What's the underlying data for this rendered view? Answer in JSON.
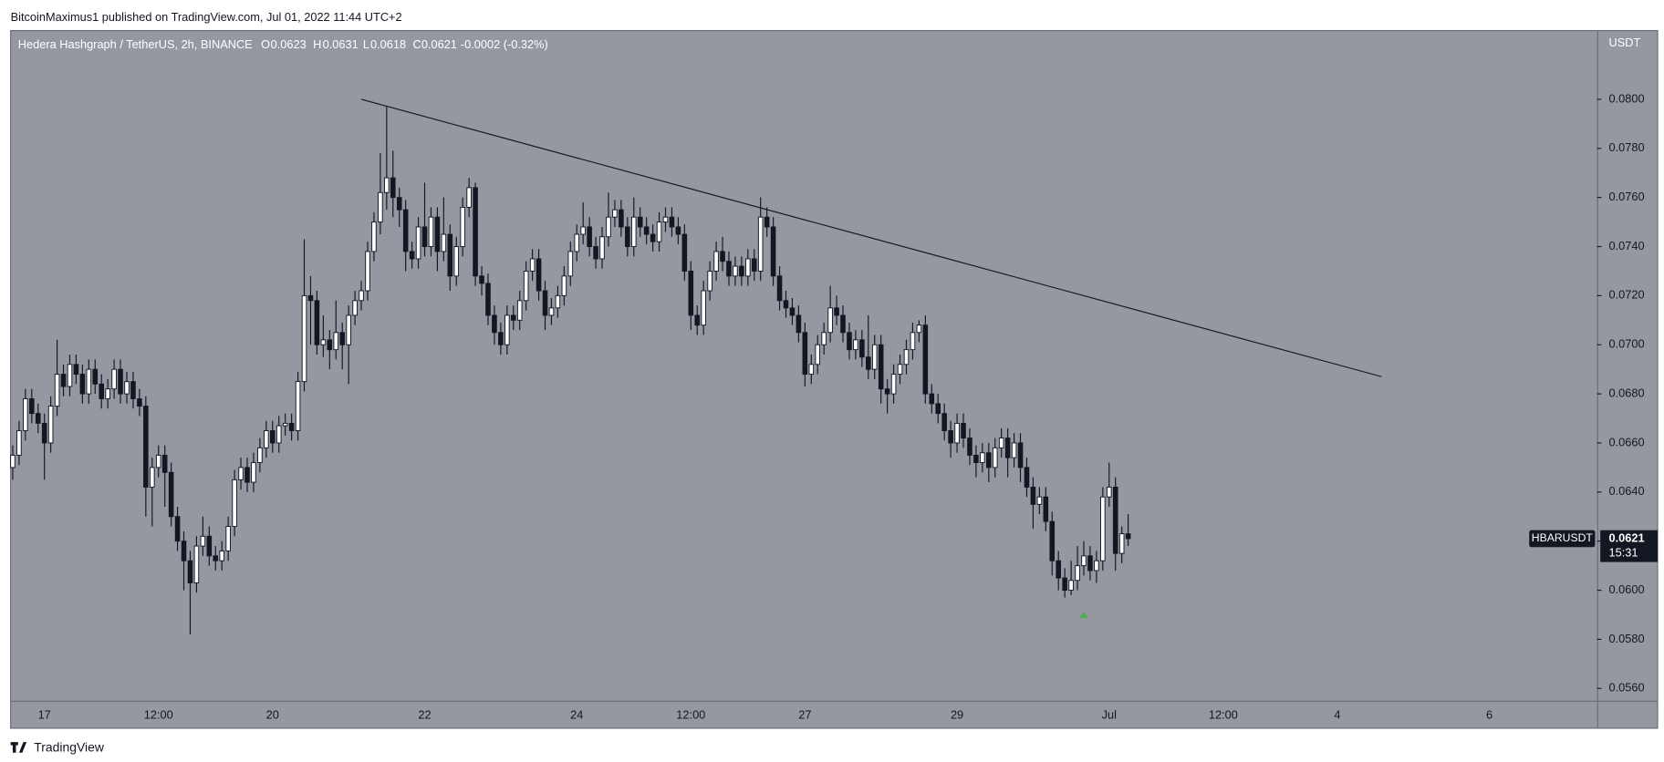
{
  "header": "BitcoinMaximus1 published on TradingView.com, Jul 01, 2022 11:44 UTC+2",
  "footer": "TradingView",
  "chart_data": {
    "type": "candlestick",
    "title": "Hedera Hashgraph / TetherUS, 2h, BINANCE",
    "legend_labels": [
      "O",
      "H",
      "L",
      "C"
    ],
    "change": "-0.0002 (-0.32%)",
    "symbol": "HBARUSDT",
    "countdown": "15:31",
    "currency": "USDT",
    "up_color": "#ffffff",
    "down_color": "#131722",
    "background": "#9598a1",
    "grid": false,
    "ylim": [
      0.0555,
      0.0828
    ],
    "yticks": [
      {
        "value": 0.056,
        "label": "0.0560"
      },
      {
        "value": 0.058,
        "label": "0.0580"
      },
      {
        "value": 0.06,
        "label": "0.0600"
      },
      {
        "value": 0.062,
        "label": "0.0620"
      },
      {
        "value": 0.064,
        "label": "0.0640"
      },
      {
        "value": 0.066,
        "label": "0.0660"
      },
      {
        "value": 0.068,
        "label": "0.0680"
      },
      {
        "value": 0.07,
        "label": "0.0700"
      },
      {
        "value": 0.072,
        "label": "0.0720"
      },
      {
        "value": 0.074,
        "label": "0.0740"
      },
      {
        "value": 0.076,
        "label": "0.0760"
      },
      {
        "value": 0.078,
        "label": "0.0780"
      },
      {
        "value": 0.08,
        "label": "0.0800"
      }
    ],
    "categories": [
      null,
      null,
      null,
      null,
      null,
      "17",
      null,
      null,
      null,
      null,
      null,
      null,
      null,
      null,
      null,
      null,
      null,
      null,
      null,
      null,
      null,
      null,
      null,
      "12:00",
      null,
      null,
      null,
      null,
      null,
      null,
      null,
      null,
      null,
      null,
      null,
      null,
      null,
      null,
      null,
      null,
      null,
      "20",
      null,
      null,
      null,
      null,
      null,
      null,
      null,
      null,
      null,
      null,
      null,
      null,
      null,
      null,
      null,
      null,
      null,
      null,
      null,
      null,
      null,
      null,
      null,
      "22",
      null,
      null,
      null,
      null,
      null,
      null,
      null,
      null,
      null,
      null,
      null,
      null,
      null,
      null,
      null,
      null,
      null,
      null,
      null,
      null,
      null,
      null,
      null,
      "24",
      null,
      null,
      null,
      null,
      null,
      null,
      null,
      null,
      null,
      null,
      null,
      null,
      null,
      null,
      null,
      null,
      null,
      "12:00",
      null,
      null,
      null,
      null,
      null,
      null,
      null,
      null,
      null,
      null,
      null,
      null,
      null,
      null,
      null,
      null,
      null,
      "27",
      null,
      null,
      null,
      null,
      null,
      null,
      null,
      null,
      null,
      null,
      null,
      null,
      null,
      null,
      null,
      null,
      null,
      null,
      null,
      null,
      null,
      null,
      null,
      "29",
      null,
      null,
      null,
      null,
      null,
      null,
      null,
      null,
      null,
      null,
      null,
      null,
      null,
      null,
      null,
      null,
      null,
      null,
      null,
      null,
      null,
      null,
      null,
      "Jul",
      null,
      null,
      null,
      null,
      null,
      null,
      null,
      null,
      null,
      null,
      null,
      null,
      null,
      null,
      null,
      null,
      null,
      "12:00",
      null,
      null,
      null,
      null,
      null,
      null,
      null,
      null,
      null,
      null,
      null,
      null,
      null,
      null,
      null,
      null,
      null,
      "4",
      null,
      null,
      null,
      null,
      null,
      null,
      null,
      null,
      null,
      null,
      null,
      null,
      null,
      null,
      null,
      null,
      null,
      null,
      null,
      null,
      null,
      null,
      null,
      "6",
      null,
      null,
      null,
      null,
      null,
      null,
      null,
      null,
      null,
      null,
      null,
      null,
      null,
      null,
      null,
      null
    ],
    "open": [
      0.065,
      0.0655,
      0.0665,
      0.0678,
      0.0672,
      0.0668,
      0.066,
      0.0675,
      0.0688,
      0.0683,
      0.0692,
      0.0688,
      0.068,
      0.069,
      0.0684,
      0.0678,
      0.0682,
      0.069,
      0.068,
      0.0685,
      0.0678,
      0.0675,
      0.0642,
      0.065,
      0.0655,
      0.0648,
      0.063,
      0.062,
      0.0612,
      0.0603,
      0.0618,
      0.0622,
      0.0614,
      0.0612,
      0.0616,
      0.0626,
      0.0645,
      0.065,
      0.0644,
      0.0652,
      0.0658,
      0.0665,
      0.066,
      0.0667,
      0.0668,
      0.0665,
      0.0685,
      0.072,
      0.0718,
      0.07,
      0.0702,
      0.0698,
      0.0705,
      0.07,
      0.0712,
      0.0718,
      0.0722,
      0.0738,
      0.075,
      0.0762,
      0.0768,
      0.076,
      0.0755,
      0.0738,
      0.0735,
      0.0748,
      0.074,
      0.0752,
      0.0738,
      0.0745,
      0.0728,
      0.074,
      0.0756,
      0.0764,
      0.0728,
      0.0725,
      0.0712,
      0.0705,
      0.07,
      0.0712,
      0.071,
      0.0718,
      0.073,
      0.0735,
      0.0722,
      0.0712,
      0.0715,
      0.072,
      0.0728,
      0.0738,
      0.0745,
      0.0748,
      0.074,
      0.0735,
      0.0744,
      0.0752,
      0.0755,
      0.0748,
      0.074,
      0.0752,
      0.0748,
      0.0745,
      0.0742,
      0.075,
      0.0752,
      0.0748,
      0.0745,
      0.073,
      0.0712,
      0.0708,
      0.0722,
      0.073,
      0.0738,
      0.0734,
      0.0728,
      0.0732,
      0.0728,
      0.0735,
      0.073,
      0.0752,
      0.0748,
      0.0728,
      0.0718,
      0.0715,
      0.0712,
      0.0705,
      0.0688,
      0.0692,
      0.07,
      0.0705,
      0.0715,
      0.0712,
      0.0705,
      0.0698,
      0.0702,
      0.0695,
      0.069,
      0.07,
      0.0682,
      0.068,
      0.0688,
      0.0692,
      0.0698,
      0.0705,
      0.0708,
      0.068,
      0.0676,
      0.0672,
      0.0665,
      0.066,
      0.0668,
      0.0662,
      0.0655,
      0.0652,
      0.0656,
      0.065,
      0.0658,
      0.0662,
      0.0654,
      0.066,
      0.065,
      0.0642,
      0.0635,
      0.0638,
      0.0628,
      0.0612,
      0.0605,
      0.06,
      0.0604,
      0.061,
      0.0614,
      0.0608,
      0.0612,
      0.0638,
      0.0642,
      0.0615,
      0.0623,
      null,
      null,
      null,
      null,
      null,
      null,
      null,
      null,
      null,
      null,
      null,
      null,
      null,
      null,
      null,
      null,
      null,
      null,
      null,
      null,
      null,
      null,
      null,
      null,
      null,
      null,
      null,
      null,
      null,
      null,
      null,
      null,
      null,
      null,
      null,
      null,
      null,
      null,
      null,
      null,
      null,
      null,
      null,
      null,
      null,
      null,
      null,
      null,
      null,
      null,
      null,
      null,
      null,
      null,
      null,
      null,
      null,
      null,
      null,
      null,
      null,
      null,
      null,
      null,
      null,
      null,
      null,
      null,
      null,
      null,
      null,
      null,
      null
    ],
    "high": [
      0.0659,
      0.0669,
      0.0682,
      0.0682,
      0.0676,
      0.0672,
      0.0679,
      0.0702,
      0.0692,
      0.0696,
      0.0696,
      0.0692,
      0.0694,
      0.0694,
      0.0688,
      0.0686,
      0.0694,
      0.0694,
      0.0689,
      0.0689,
      0.0682,
      0.0679,
      0.0654,
      0.0659,
      0.0659,
      0.0652,
      0.0634,
      0.0624,
      0.0616,
      0.0622,
      0.063,
      0.0626,
      0.0618,
      0.062,
      0.063,
      0.0649,
      0.0654,
      0.0654,
      0.0656,
      0.0662,
      0.0669,
      0.0669,
      0.0671,
      0.0672,
      0.0672,
      0.0689,
      0.0743,
      0.0728,
      0.0722,
      0.0712,
      0.0706,
      0.0718,
      0.0709,
      0.0716,
      0.0722,
      0.0726,
      0.0742,
      0.0754,
      0.0778,
      0.0797,
      0.0779,
      0.0764,
      0.0759,
      0.0742,
      0.0752,
      0.0766,
      0.0756,
      0.0756,
      0.076,
      0.0749,
      0.0744,
      0.076,
      0.0768,
      0.0766,
      0.0732,
      0.0729,
      0.0716,
      0.0709,
      0.0716,
      0.0716,
      0.0722,
      0.0734,
      0.0739,
      0.0739,
      0.0726,
      0.0719,
      0.0724,
      0.0732,
      0.0742,
      0.0749,
      0.0758,
      0.0752,
      0.0744,
      0.0748,
      0.0762,
      0.0759,
      0.0759,
      0.0752,
      0.076,
      0.0756,
      0.0752,
      0.0749,
      0.0754,
      0.0756,
      0.0756,
      0.0752,
      0.0749,
      0.0734,
      0.0716,
      0.0726,
      0.0734,
      0.0742,
      0.0744,
      0.0738,
      0.0736,
      0.0736,
      0.0739,
      0.0739,
      0.076,
      0.0756,
      0.0752,
      0.0732,
      0.0722,
      0.0719,
      0.0716,
      0.0709,
      0.0696,
      0.0704,
      0.0709,
      0.0724,
      0.072,
      0.0716,
      0.0709,
      0.0706,
      0.0706,
      0.0712,
      0.0704,
      0.0704,
      0.0686,
      0.0692,
      0.0696,
      0.0702,
      0.0709,
      0.071,
      0.0712,
      0.0684,
      0.068,
      0.0676,
      0.0669,
      0.0672,
      0.0672,
      0.0666,
      0.0659,
      0.066,
      0.066,
      0.0662,
      0.0666,
      0.0666,
      0.0664,
      0.0664,
      0.0654,
      0.0646,
      0.0642,
      0.0642,
      0.0632,
      0.0616,
      0.0609,
      0.0612,
      0.0618,
      0.062,
      0.0618,
      0.0616,
      0.0642,
      0.0652,
      0.0646,
      0.0626,
      0.0631,
      null,
      null,
      null,
      null,
      null,
      null,
      null,
      null,
      null,
      null,
      null,
      null,
      null,
      null,
      null,
      null,
      null,
      null,
      null,
      null,
      null,
      null,
      null,
      null,
      null,
      null,
      null,
      null,
      null,
      null,
      null,
      null,
      null,
      null,
      null,
      null,
      null,
      null,
      null,
      null,
      null,
      null,
      null,
      null,
      null,
      null,
      null,
      null,
      null,
      null,
      null,
      null,
      null,
      null,
      null,
      null,
      null,
      null,
      null,
      null,
      null,
      null,
      null,
      null,
      null,
      null,
      null,
      null,
      null,
      null,
      null,
      null,
      null
    ],
    "low": [
      0.0645,
      0.0651,
      0.0661,
      0.0668,
      0.0664,
      0.0645,
      0.0656,
      0.0671,
      0.0679,
      0.0679,
      0.0684,
      0.0676,
      0.0676,
      0.068,
      0.0674,
      0.0674,
      0.0678,
      0.0676,
      0.0676,
      0.0674,
      0.0671,
      0.063,
      0.0626,
      0.0646,
      0.0634,
      0.0626,
      0.0616,
      0.06,
      0.0582,
      0.0599,
      0.0614,
      0.061,
      0.0608,
      0.0608,
      0.0612,
      0.0622,
      0.0641,
      0.064,
      0.064,
      0.0648,
      0.0654,
      0.0656,
      0.0656,
      0.0663,
      0.0661,
      0.0661,
      0.0681,
      0.07,
      0.0696,
      0.0695,
      0.069,
      0.0694,
      0.069,
      0.0684,
      0.0708,
      0.0714,
      0.0718,
      0.0734,
      0.0745,
      0.0755,
      0.0752,
      0.0748,
      0.073,
      0.0731,
      0.0731,
      0.0736,
      0.0736,
      0.073,
      0.0734,
      0.0722,
      0.0724,
      0.0736,
      0.0752,
      0.0724,
      0.072,
      0.0708,
      0.07,
      0.0696,
      0.0696,
      0.0706,
      0.0706,
      0.0714,
      0.0726,
      0.0718,
      0.0706,
      0.0708,
      0.0711,
      0.0716,
      0.0724,
      0.0734,
      0.0741,
      0.0736,
      0.0731,
      0.0731,
      0.074,
      0.0748,
      0.0744,
      0.0736,
      0.0736,
      0.0744,
      0.0741,
      0.0738,
      0.0738,
      0.0746,
      0.0744,
      0.0741,
      0.0726,
      0.0706,
      0.0704,
      0.0704,
      0.0718,
      0.0726,
      0.073,
      0.0724,
      0.0724,
      0.0724,
      0.0724,
      0.0726,
      0.0726,
      0.0744,
      0.0724,
      0.0714,
      0.0711,
      0.0708,
      0.0701,
      0.0683,
      0.0684,
      0.0688,
      0.0696,
      0.0701,
      0.0708,
      0.0701,
      0.0694,
      0.0694,
      0.0691,
      0.0686,
      0.0686,
      0.0676,
      0.0672,
      0.0676,
      0.0684,
      0.0688,
      0.0694,
      0.0701,
      0.0676,
      0.0672,
      0.0668,
      0.0661,
      0.0654,
      0.0656,
      0.0658,
      0.0651,
      0.0646,
      0.0648,
      0.0644,
      0.0646,
      0.0654,
      0.0646,
      0.065,
      0.0644,
      0.0638,
      0.0625,
      0.0631,
      0.0624,
      0.0606,
      0.06,
      0.0597,
      0.0598,
      0.06,
      0.0606,
      0.0604,
      0.0603,
      0.0608,
      0.0634,
      0.0608,
      0.0611,
      0.0618,
      null,
      null,
      null,
      null,
      null,
      null,
      null,
      null,
      null,
      null,
      null,
      null,
      null,
      null,
      null,
      null,
      null,
      null,
      null,
      null,
      null,
      null,
      null,
      null,
      null,
      null,
      null,
      null,
      null,
      null,
      null,
      null,
      null,
      null,
      null,
      null,
      null,
      null,
      null,
      null,
      null,
      null,
      null,
      null,
      null,
      null,
      null,
      null,
      null,
      null,
      null,
      null,
      null,
      null,
      null,
      null,
      null,
      null,
      null,
      null,
      null,
      null,
      null,
      null,
      null,
      null,
      null,
      null,
      null,
      null,
      null,
      null,
      null
    ],
    "close": [
      0.0655,
      0.0665,
      0.0678,
      0.0672,
      0.0668,
      0.066,
      0.0675,
      0.0688,
      0.0683,
      0.0692,
      0.0688,
      0.068,
      0.069,
      0.0684,
      0.0678,
      0.0682,
      0.069,
      0.068,
      0.0685,
      0.0678,
      0.0675,
      0.0642,
      0.065,
      0.0655,
      0.0648,
      0.063,
      0.062,
      0.0612,
      0.0603,
      0.0618,
      0.0622,
      0.0614,
      0.0612,
      0.0616,
      0.0626,
      0.0645,
      0.065,
      0.0644,
      0.0652,
      0.0658,
      0.0665,
      0.066,
      0.0667,
      0.0668,
      0.0665,
      0.0685,
      0.072,
      0.0718,
      0.07,
      0.0702,
      0.0698,
      0.0705,
      0.07,
      0.0712,
      0.0718,
      0.0722,
      0.0738,
      0.075,
      0.0762,
      0.0768,
      0.076,
      0.0755,
      0.0738,
      0.0735,
      0.0748,
      0.074,
      0.0752,
      0.0738,
      0.0745,
      0.0728,
      0.074,
      0.0756,
      0.0764,
      0.0728,
      0.0725,
      0.0712,
      0.0705,
      0.07,
      0.0712,
      0.071,
      0.0718,
      0.073,
      0.0735,
      0.0722,
      0.0712,
      0.0715,
      0.072,
      0.0728,
      0.0738,
      0.0745,
      0.0748,
      0.074,
      0.0735,
      0.0744,
      0.0752,
      0.0755,
      0.0748,
      0.074,
      0.0752,
      0.0748,
      0.0745,
      0.0742,
      0.075,
      0.0752,
      0.0748,
      0.0745,
      0.073,
      0.0712,
      0.0708,
      0.0722,
      0.073,
      0.0738,
      0.0734,
      0.0728,
      0.0732,
      0.0728,
      0.0735,
      0.073,
      0.0752,
      0.0748,
      0.0728,
      0.0718,
      0.0715,
      0.0712,
      0.0705,
      0.0688,
      0.0692,
      0.07,
      0.0705,
      0.0715,
      0.0712,
      0.0705,
      0.0698,
      0.0702,
      0.0695,
      0.069,
      0.07,
      0.0682,
      0.068,
      0.0688,
      0.0692,
      0.0698,
      0.0705,
      0.0708,
      0.068,
      0.0676,
      0.0672,
      0.0665,
      0.066,
      0.0668,
      0.0662,
      0.0655,
      0.0652,
      0.0656,
      0.065,
      0.0658,
      0.0662,
      0.0654,
      0.066,
      0.065,
      0.0642,
      0.0635,
      0.0638,
      0.0628,
      0.0612,
      0.0605,
      0.06,
      0.0604,
      0.061,
      0.0614,
      0.0608,
      0.0612,
      0.0638,
      0.0642,
      0.0615,
      0.0623,
      0.0621,
      null,
      null,
      null,
      null,
      null,
      null,
      null,
      null,
      null,
      null,
      null,
      null,
      null,
      null,
      null,
      null,
      null,
      null,
      null,
      null,
      null,
      null,
      null,
      null,
      null,
      null,
      null,
      null,
      null,
      null,
      null,
      null,
      null,
      null,
      null,
      null,
      null,
      null,
      null,
      null,
      null,
      null,
      null,
      null,
      null,
      null,
      null,
      null,
      null,
      null,
      null,
      null,
      null,
      null,
      null,
      null,
      null,
      null,
      null,
      null,
      null,
      null,
      null,
      null,
      null,
      null,
      null,
      null,
      null,
      null,
      null,
      null,
      null
    ],
    "trendline": {
      "from_index": 55,
      "from_value": 0.08,
      "to_index": 216,
      "to_value": 0.0687,
      "color": "#131722"
    },
    "markers": [
      {
        "index": 169,
        "value": 0.059,
        "color": "#4caf50"
      }
    ]
  }
}
